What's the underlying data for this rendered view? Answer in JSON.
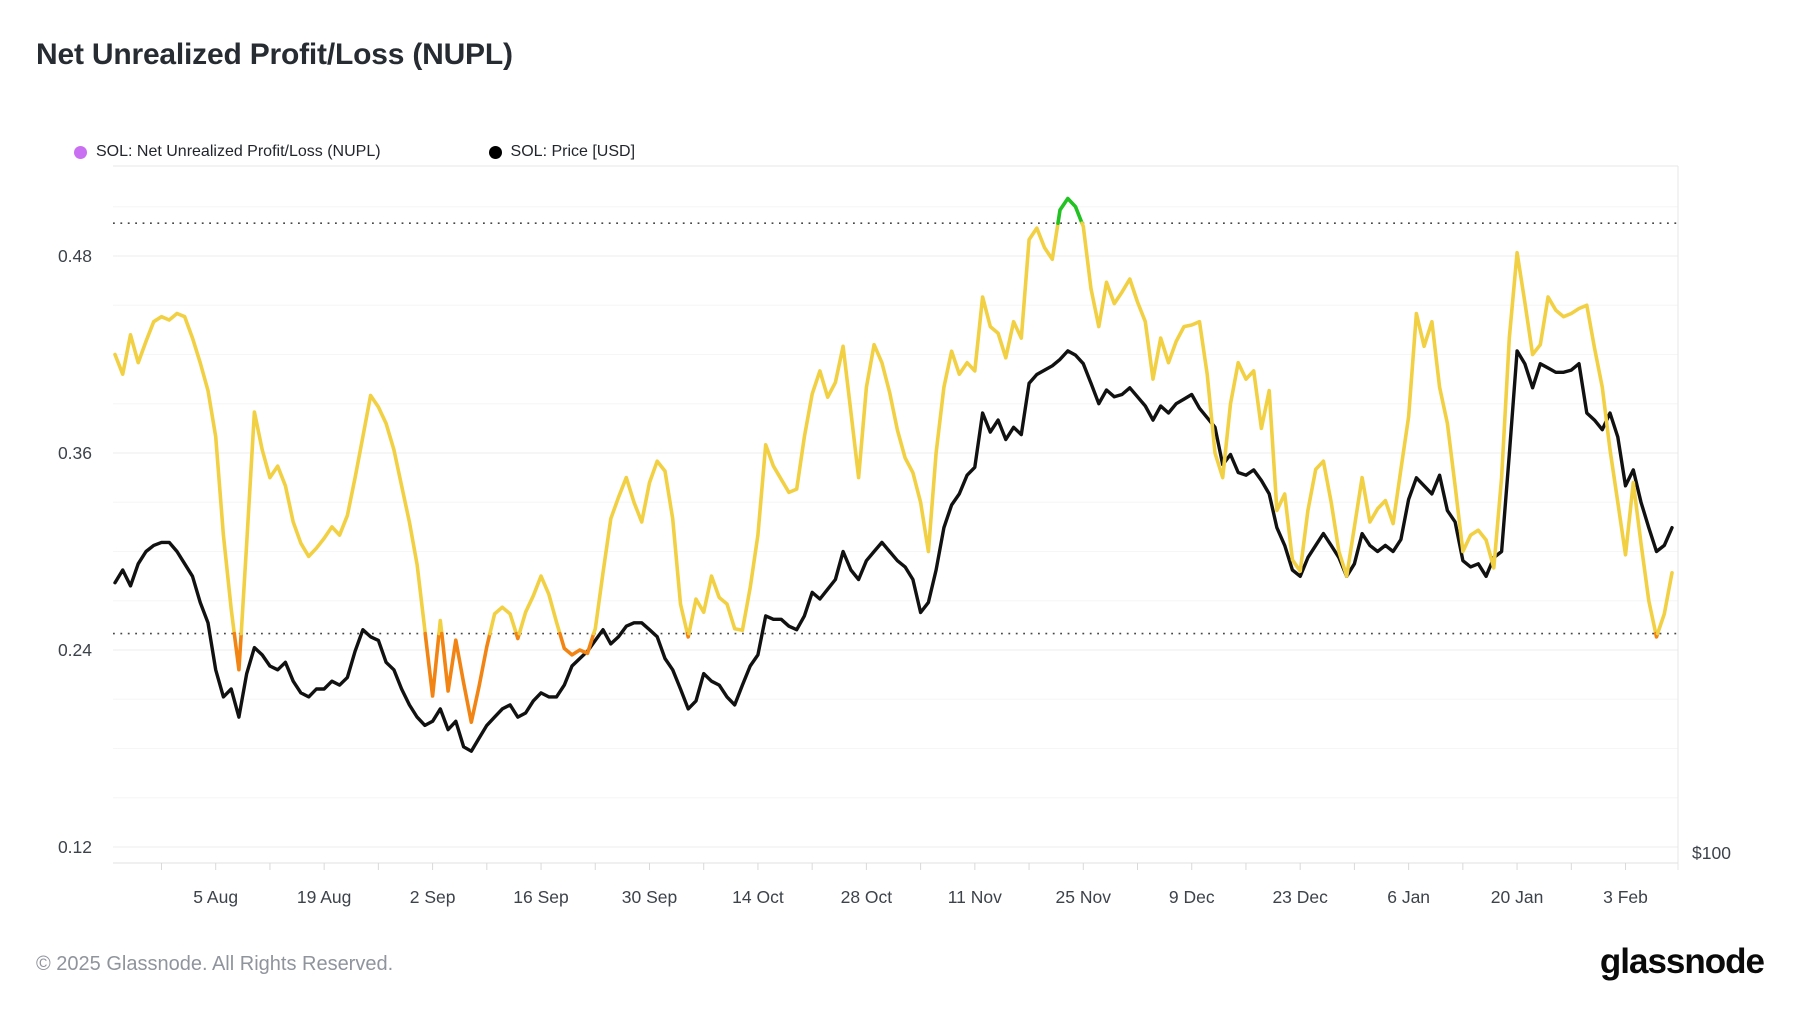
{
  "header": {
    "title": "Net Unrealized Profit/Loss (NUPL)"
  },
  "legend": {
    "items": [
      {
        "label": "SOL: Net Unrealized Profit/Loss (NUPL)",
        "dot_color": "#c96ff2"
      },
      {
        "label": "SOL: Price [USD]",
        "dot_color": "#000000"
      }
    ]
  },
  "footer": {
    "copyright": "© 2025 Glassnode. All Rights Reserved.",
    "brand": "glassnode"
  },
  "chart_data": {
    "type": "line",
    "title": "Net Unrealized Profit/Loss (NUPL)",
    "start_date": "2024-07-23",
    "end_date": "2025-02-09",
    "x_tick_labels": [
      "5 Aug",
      "19 Aug",
      "2 Sep",
      "16 Sep",
      "30 Sep",
      "14 Oct",
      "28 Oct",
      "11 Nov",
      "25 Nov",
      "9 Dec",
      "23 Dec",
      "6 Jan",
      "20 Jan",
      "3 Feb"
    ],
    "x_tick_day_indices": [
      13,
      27,
      41,
      55,
      69,
      83,
      97,
      111,
      125,
      139,
      153,
      167,
      181,
      195
    ],
    "y_axis_left": {
      "tick_labels": [
        "0.48",
        "0.36",
        "0.24",
        "0.12"
      ],
      "tick_values": [
        0.48,
        0.36,
        0.24,
        0.12
      ],
      "range": [
        0.11,
        0.535
      ],
      "grid": "on"
    },
    "y_axis_right": {
      "visible_labels": [
        "$100"
      ],
      "scale": "log"
    },
    "threshold_dotted_lines": [
      0.5,
      0.25
    ],
    "colors": {
      "nupl_yellow": "#f2d043",
      "nupl_orange": "#f28413",
      "nupl_green": "#21c221",
      "price_line": "#111111",
      "legend_nupl_dot": "#c96ff2",
      "gridline_major": "#ececec",
      "gridline_minor": "#f6f6f6",
      "axis_border": "#e7e7e7",
      "tick_text": "#3d434b"
    },
    "legend_position": "top-left",
    "series": [
      {
        "name": "SOL: Net Unrealized Profit/Loss (NUPL)",
        "axis": "left",
        "color_rule": "green above 0.5, yellow between 0.25 and 0.5, orange below 0.25",
        "values": [
          0.42,
          0.408,
          0.432,
          0.415,
          0.428,
          0.44,
          0.443,
          0.441,
          0.445,
          0.443,
          0.43,
          0.415,
          0.398,
          0.37,
          0.31,
          0.265,
          0.228,
          0.305,
          0.385,
          0.362,
          0.345,
          0.352,
          0.34,
          0.318,
          0.305,
          0.297,
          0.302,
          0.308,
          0.315,
          0.31,
          0.322,
          0.345,
          0.37,
          0.395,
          0.388,
          0.378,
          0.362,
          0.34,
          0.318,
          0.292,
          0.252,
          0.212,
          0.258,
          0.215,
          0.246,
          0.22,
          0.196,
          0.218,
          0.242,
          0.262,
          0.266,
          0.262,
          0.247,
          0.263,
          0.273,
          0.285,
          0.274,
          0.257,
          0.241,
          0.237,
          0.24,
          0.238,
          0.253,
          0.287,
          0.32,
          0.333,
          0.345,
          0.33,
          0.318,
          0.342,
          0.355,
          0.349,
          0.32,
          0.268,
          0.248,
          0.271,
          0.263,
          0.285,
          0.272,
          0.268,
          0.253,
          0.252,
          0.278,
          0.31,
          0.365,
          0.352,
          0.344,
          0.336,
          0.338,
          0.37,
          0.396,
          0.41,
          0.394,
          0.403,
          0.425,
          0.385,
          0.345,
          0.4,
          0.426,
          0.415,
          0.397,
          0.374,
          0.357,
          0.348,
          0.33,
          0.3,
          0.36,
          0.4,
          0.422,
          0.408,
          0.415,
          0.41,
          0.455,
          0.437,
          0.433,
          0.418,
          0.44,
          0.43,
          0.49,
          0.497,
          0.485,
          0.478,
          0.508,
          0.515,
          0.51,
          0.498,
          0.46,
          0.437,
          0.464,
          0.451,
          0.458,
          0.466,
          0.452,
          0.44,
          0.405,
          0.43,
          0.415,
          0.428,
          0.437,
          0.438,
          0.44,
          0.408,
          0.36,
          0.345,
          0.39,
          0.415,
          0.405,
          0.41,
          0.375,
          0.398,
          0.325,
          0.335,
          0.295,
          0.288,
          0.325,
          0.35,
          0.355,
          0.33,
          0.3,
          0.285,
          0.315,
          0.345,
          0.318,
          0.326,
          0.331,
          0.317,
          0.35,
          0.382,
          0.445,
          0.425,
          0.44,
          0.4,
          0.378,
          0.34,
          0.3,
          0.31,
          0.313,
          0.307,
          0.29,
          0.345,
          0.43,
          0.482,
          0.452,
          0.42,
          0.426,
          0.455,
          0.447,
          0.443,
          0.445,
          0.448,
          0.45,
          0.424,
          0.4,
          0.362,
          0.33,
          0.298,
          0.342,
          0.305,
          0.27,
          0.248,
          0.262,
          0.287
        ]
      },
      {
        "name": "SOL: Price [USD]",
        "axis": "right",
        "unit": "USD",
        "values": [
          168,
          172,
          167,
          174,
          178,
          180,
          181,
          181,
          178,
          174,
          170,
          162,
          156,
          143,
          136,
          138,
          131,
          142,
          149,
          147,
          144,
          143,
          145,
          140,
          137,
          136,
          138,
          138,
          140,
          139,
          141,
          148,
          154,
          152,
          151,
          145,
          143,
          138,
          134,
          131,
          129,
          130,
          133,
          128,
          130,
          124,
          123,
          126,
          129,
          131,
          133,
          134,
          131,
          132,
          135,
          137,
          136,
          136,
          139,
          144,
          146,
          148,
          151,
          154,
          150,
          152,
          155,
          156,
          156,
          154,
          152,
          146,
          143,
          138,
          133,
          135,
          142,
          140,
          139,
          136,
          134,
          139,
          144,
          147,
          158,
          157,
          157,
          155,
          154,
          158,
          165,
          163,
          166,
          169,
          178,
          172,
          169,
          175,
          178,
          181,
          178,
          175,
          173,
          169,
          159,
          162,
          172,
          186,
          194,
          198,
          205,
          208,
          230,
          222,
          227,
          219,
          224,
          221,
          243,
          247,
          249,
          251,
          254,
          258,
          256,
          252,
          243,
          234,
          240,
          237,
          238,
          241,
          237,
          233,
          227,
          233,
          230,
          234,
          236,
          238,
          232,
          228,
          224,
          209,
          213,
          206,
          205,
          207,
          203,
          198,
          186,
          180,
          172,
          170,
          176,
          180,
          184,
          180,
          176,
          170,
          174,
          184,
          180,
          178,
          180,
          178,
          182,
          196,
          204,
          201,
          198,
          205,
          192,
          188,
          175,
          173,
          174,
          170,
          176,
          178,
          213,
          258,
          252,
          241,
          252,
          250,
          248,
          248,
          249,
          252,
          230,
          227,
          223,
          230,
          220,
          201,
          207,
          195,
          186,
          178,
          180,
          186
        ]
      }
    ]
  }
}
